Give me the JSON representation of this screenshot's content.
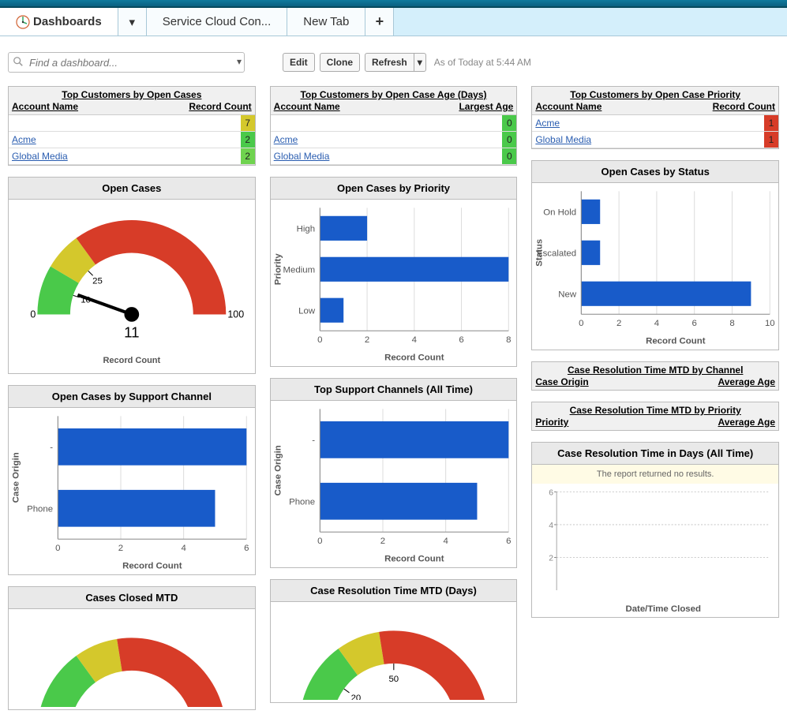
{
  "tabs": {
    "main": "Dashboards",
    "t1": "Service Cloud Con...",
    "t2": "New Tab"
  },
  "toolbar": {
    "search_placeholder": "Find a dashboard...",
    "edit": "Edit",
    "clone": "Clone",
    "refresh": "Refresh",
    "status": "As of Today at 5:44 AM"
  },
  "colors": {
    "bar": "#185bc9",
    "green": "#4ac94a",
    "yellow": "#d4c82c",
    "red": "#d73c28",
    "grid": "#cccccc",
    "panel_head": "#e9e9e9"
  },
  "col1": {
    "t1": {
      "title": "Top Customers by Open Cases",
      "head_left": "Account Name",
      "head_right": "Record Count",
      "rows": [
        {
          "name": "",
          "val": "7",
          "color": "#d4c82c"
        },
        {
          "name": "Acme",
          "val": "2",
          "color": "#4ac94a"
        },
        {
          "name": "Global Media",
          "val": "2",
          "color": "#6fd34f"
        }
      ]
    },
    "gauge": {
      "title": "Open Cases",
      "value": 11,
      "value_label": "11",
      "min": 0,
      "max": 100,
      "ticks": [
        "0",
        "10",
        "25",
        "100"
      ],
      "segments": [
        {
          "from": 0,
          "to": 17,
          "color": "#4ac94a"
        },
        {
          "from": 17,
          "to": 30,
          "color": "#d4c82c"
        },
        {
          "from": 30,
          "to": 100,
          "color": "#d73c28"
        }
      ],
      "footer": "Record Count"
    },
    "bar1": {
      "title": "Open Cases by Support Channel",
      "ylabel": "Case Origin",
      "xlabel": "Record Count",
      "xmax": 6,
      "xstep": 2,
      "bars": [
        {
          "label": "-",
          "value": 6
        },
        {
          "label": "Phone",
          "value": 5
        }
      ]
    },
    "gauge2": {
      "title": "Cases Closed MTD"
    }
  },
  "col2": {
    "t1": {
      "title": "Top Customers by Open Case Age (Days)",
      "head_left": "Account Name",
      "head_right": "Largest Age",
      "rows": [
        {
          "name": "",
          "val": "0",
          "color": "#4ac94a"
        },
        {
          "name": "Acme",
          "val": "0",
          "color": "#4ac94a"
        },
        {
          "name": "Global Media",
          "val": "0",
          "color": "#4ac94a"
        }
      ]
    },
    "bar1": {
      "title": "Open Cases by Priority",
      "ylabel": "Priority",
      "xlabel": "Record Count",
      "xmax": 8,
      "xstep": 2,
      "bars": [
        {
          "label": "High",
          "value": 2
        },
        {
          "label": "Medium",
          "value": 8
        },
        {
          "label": "Low",
          "value": 1
        }
      ]
    },
    "bar2": {
      "title": "Top Support Channels (All Time)",
      "ylabel": "Case Origin",
      "xlabel": "Record Count",
      "xmax": 6,
      "xstep": 2,
      "bars": [
        {
          "label": "-",
          "value": 6
        },
        {
          "label": "Phone",
          "value": 5
        }
      ]
    },
    "gauge2": {
      "title": "Case Resolution Time MTD (Days)",
      "ticks": [
        "20",
        "50"
      ]
    }
  },
  "col3": {
    "t1": {
      "title": "Top Customers by Open Case Priority",
      "head_left": "Account Name",
      "head_right": "Record Count",
      "rows": [
        {
          "name": "Acme",
          "val": "1",
          "color": "#d73c28"
        },
        {
          "name": "Global Media",
          "val": "1",
          "color": "#d73c28"
        }
      ]
    },
    "bar1": {
      "title": "Open Cases by Status",
      "ylabel": "Status",
      "xlabel": "Record Count",
      "xmax": 10,
      "xstep": 2,
      "bars": [
        {
          "label": "On Hold",
          "value": 1
        },
        {
          "label": "Escalated",
          "value": 1
        },
        {
          "label": "New",
          "value": 9
        }
      ]
    },
    "mini1": {
      "title": "Case Resolution Time MTD by Channel",
      "left": "Case Origin",
      "right": "Average Age"
    },
    "mini2": {
      "title": "Case Resolution Time MTD by Priority",
      "left": "Priority",
      "right": "Average Age"
    },
    "time_chart": {
      "title": "Case Resolution Time in Days (All Time)",
      "msg": "The report returned no results.",
      "xlabel": "Date/Time Closed",
      "ymax": 6,
      "ystep": 2
    }
  }
}
